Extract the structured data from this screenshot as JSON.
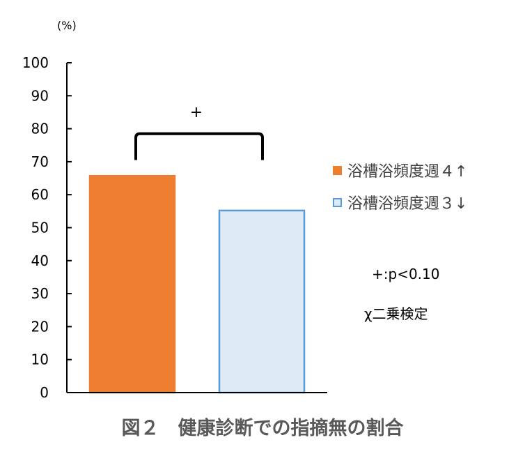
{
  "chart_data": {
    "type": "bar",
    "unit_label": "(%)",
    "categories": [
      "浴槽浴頻度週４↑",
      "浴槽浴頻度週３↓"
    ],
    "values": [
      65.7,
      55.2
    ],
    "ylim": [
      0,
      100
    ],
    "yticks": [
      0,
      10,
      20,
      30,
      40,
      50,
      60,
      70,
      80,
      90,
      100
    ],
    "colors": {
      "bar_fill": [
        "#ED7D31",
        "#DEEBF7"
      ],
      "bar_stroke": [
        "#ED7D31",
        "#5B9BD5"
      ]
    },
    "significance_marker": "+",
    "grid": false,
    "legend_position": "right"
  },
  "notes": {
    "pvalue": "+:p<0.10",
    "test": "χ二乗検定"
  },
  "caption": "図２　健康診断での指摘無の割合"
}
